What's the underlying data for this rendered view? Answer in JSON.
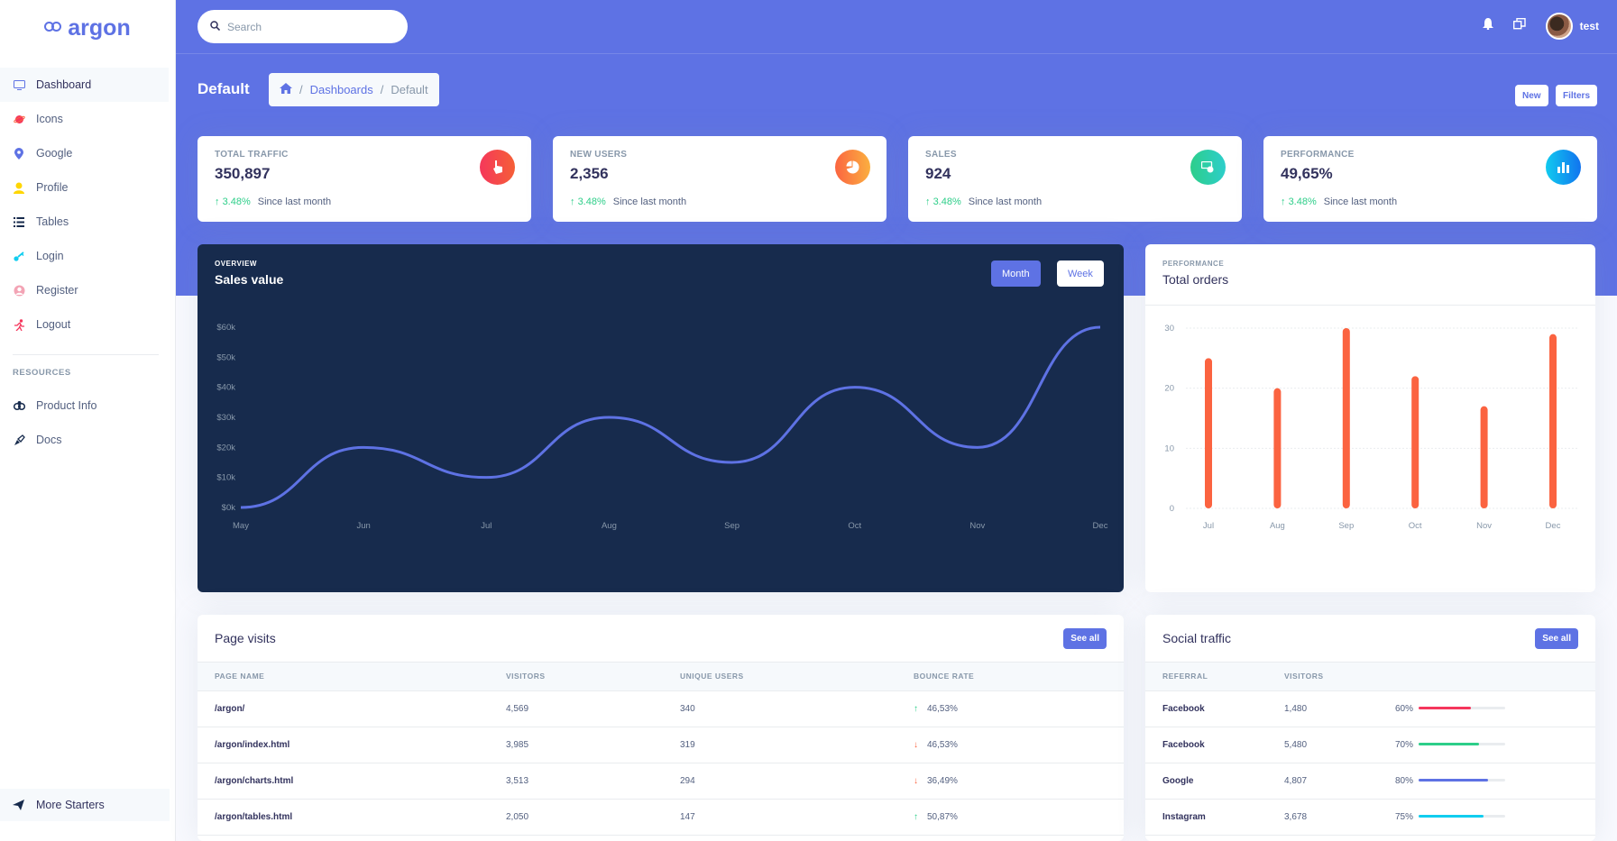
{
  "brand": {
    "name": "argon"
  },
  "sidebar": {
    "items": [
      {
        "label": "Dashboard",
        "icon": "tv-icon",
        "color": "#5e72e4"
      },
      {
        "label": "Icons",
        "icon": "planet-icon",
        "color": "#f5365c"
      },
      {
        "label": "Google",
        "icon": "pin-icon",
        "color": "#5e72e4"
      },
      {
        "label": "Profile",
        "icon": "user-icon",
        "color": "#ffd600"
      },
      {
        "label": "Tables",
        "icon": "list-icon",
        "color": "#172b4d"
      },
      {
        "label": "Login",
        "icon": "key-icon",
        "color": "#11cdef"
      },
      {
        "label": "Register",
        "icon": "circle-user-icon",
        "color": "#f3a4b5"
      },
      {
        "label": "Logout",
        "icon": "run-icon",
        "color": "#f5365c"
      }
    ],
    "resources_heading": "RESOURCES",
    "resources": [
      {
        "label": "Product Info",
        "icon": "spaceship-icon"
      },
      {
        "label": "Docs",
        "icon": "palette-icon"
      }
    ],
    "bottom": "More Starters"
  },
  "header": {
    "search_placeholder": "Search",
    "user": "test",
    "page_title": "Default",
    "breadcrumb": [
      "Dashboards",
      "Default"
    ],
    "new_label": "New",
    "filters_label": "Filters"
  },
  "stats": [
    {
      "label": "TOTAL TRAFFIC",
      "value": "350,897",
      "pct": "3.48%",
      "since": "Since last month",
      "icon": "hand-pointer-icon",
      "color": "#f5365c"
    },
    {
      "label": "NEW USERS",
      "value": "2,356",
      "pct": "3.48%",
      "since": "Since last month",
      "icon": "chart-pie-icon",
      "color": "#fb6340"
    },
    {
      "label": "SALES",
      "value": "924",
      "pct": "3.48%",
      "since": "Since last month",
      "icon": "money-coins-icon",
      "color": "#2dce89"
    },
    {
      "label": "PERFORMANCE",
      "value": "49,65%",
      "pct": "3.48%",
      "since": "Since last month",
      "icon": "chart-bar-icon",
      "color": "#11cdef"
    }
  ],
  "sales_card": {
    "overline": "OVERVIEW",
    "title": "Sales value",
    "month": "Month",
    "week": "Week"
  },
  "orders_card": {
    "overline": "PERFORMANCE",
    "title": "Total orders"
  },
  "chart_data": [
    {
      "type": "line",
      "title": "Sales value",
      "categories": [
        "May",
        "Jun",
        "Jul",
        "Aug",
        "Sep",
        "Oct",
        "Nov",
        "Dec"
      ],
      "values": [
        0,
        20,
        10,
        30,
        15,
        40,
        20,
        60
      ],
      "yticks": [
        "$0k",
        "$10k",
        "$20k",
        "$30k",
        "$40k",
        "$50k",
        "$60k"
      ],
      "ylim": [
        0,
        60
      ],
      "color": "#5e72e4"
    },
    {
      "type": "bar",
      "title": "Total orders",
      "categories": [
        "Jul",
        "Aug",
        "Sep",
        "Oct",
        "Nov",
        "Dec"
      ],
      "values": [
        25,
        20,
        30,
        22,
        17,
        29
      ],
      "yticks": [
        "0",
        "10",
        "20",
        "30"
      ],
      "ylim": [
        0,
        30
      ],
      "color": "#fb6340"
    }
  ],
  "page_visits": {
    "title": "Page visits",
    "see_all": "See all",
    "columns": [
      "PAGE NAME",
      "VISITORS",
      "UNIQUE USERS",
      "BOUNCE RATE"
    ],
    "rows": [
      {
        "page": "/argon/",
        "visitors": "4,569",
        "unique": "340",
        "rate": "46,53%",
        "dir": "up"
      },
      {
        "page": "/argon/index.html",
        "visitors": "3,985",
        "unique": "319",
        "rate": "46,53%",
        "dir": "down"
      },
      {
        "page": "/argon/charts.html",
        "visitors": "3,513",
        "unique": "294",
        "rate": "36,49%",
        "dir": "down"
      },
      {
        "page": "/argon/tables.html",
        "visitors": "2,050",
        "unique": "147",
        "rate": "50,87%",
        "dir": "up"
      }
    ]
  },
  "social": {
    "title": "Social traffic",
    "see_all": "See all",
    "columns": [
      "REFERRAL",
      "VISITORS",
      ""
    ],
    "rows": [
      {
        "ref": "Facebook",
        "visitors": "1,480",
        "pct": "60%",
        "fill": 60,
        "color": "#f5365c"
      },
      {
        "ref": "Facebook",
        "visitors": "5,480",
        "pct": "70%",
        "fill": 70,
        "color": "#2dce89"
      },
      {
        "ref": "Google",
        "visitors": "4,807",
        "pct": "80%",
        "fill": 80,
        "color": "#5e72e4"
      },
      {
        "ref": "Instagram",
        "visitors": "3,678",
        "pct": "75%",
        "fill": 75,
        "color": "#11cdef"
      }
    ]
  }
}
